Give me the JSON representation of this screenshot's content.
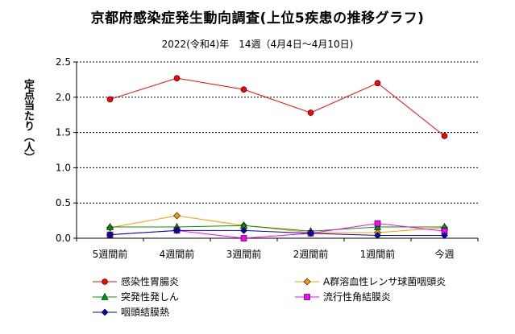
{
  "chart_data": {
    "type": "line",
    "title": "京都府感染症発生動向調査(上位5疾患の推移グラフ)",
    "subtitle": "2022(令和4)年　14週（4月4日～4月10日)",
    "ylabel": "定点当たり（人）",
    "xlabel": "",
    "categories": [
      "5週間前",
      "4週間前",
      "3週間前",
      "2週間前",
      "1週間前",
      "今週"
    ],
    "ylim": [
      0,
      2.5
    ],
    "yticks": [
      "0.0",
      "0.5",
      "1.0",
      "1.5",
      "2.0",
      "2.5"
    ],
    "grid": true,
    "legend_position": "bottom",
    "series": [
      {
        "name": "感染性胃腸炎",
        "color": "#ff0000",
        "marker": "circle",
        "values": [
          1.97,
          2.27,
          2.11,
          1.78,
          2.2,
          1.45
        ]
      },
      {
        "name": "A群溶血性レンサ球菌咽頭炎",
        "color": "#ff9900",
        "marker": "diamond",
        "values": [
          0.15,
          0.32,
          0.18,
          0.08,
          0.08,
          0.15
        ]
      },
      {
        "name": "突発性発しん",
        "color": "#009900",
        "marker": "triangle",
        "values": [
          0.16,
          0.16,
          0.18,
          0.1,
          0.16,
          0.16
        ]
      },
      {
        "name": "流行性角結膜炎",
        "color": "#ff00ff",
        "marker": "square",
        "values": [
          0.05,
          0.11,
          0.0,
          0.07,
          0.21,
          0.1
        ]
      },
      {
        "name": "咽頭結膜熱",
        "color": "#0000cc",
        "marker": "diamond",
        "values": [
          0.05,
          0.11,
          0.11,
          0.07,
          0.04,
          0.04
        ]
      }
    ]
  }
}
